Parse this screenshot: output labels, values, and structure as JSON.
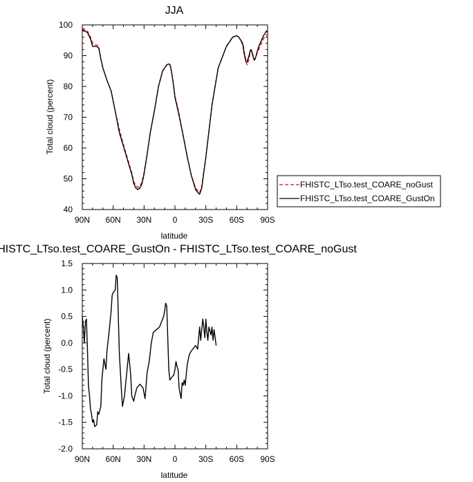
{
  "chart_data": [
    {
      "type": "line",
      "title": "JJA",
      "xlabel": "latitude",
      "ylabel": "Total cloud (percent)",
      "xlim": [
        -90,
        90
      ],
      "ylim": [
        40,
        100
      ],
      "x_ticks": [
        -90,
        -60,
        -30,
        0,
        30,
        60,
        90
      ],
      "x_tick_labels": [
        "90N",
        "60N",
        "30N",
        "0",
        "30S",
        "60S",
        "90S"
      ],
      "y_ticks": [
        40,
        50,
        60,
        70,
        80,
        90,
        100
      ],
      "y_tick_labels": [
        "40",
        "50",
        "60",
        "70",
        "80",
        "90",
        "100"
      ],
      "grid": false,
      "legend_position": "right",
      "x": [
        -90,
        -85,
        -82,
        -80,
        -78,
        -76,
        -74,
        -72,
        -70,
        -66,
        -62,
        -58,
        -54,
        -50,
        -46,
        -42,
        -40,
        -38,
        -36,
        -34,
        -32,
        -30,
        -27,
        -24,
        -20,
        -16,
        -12,
        -8,
        -6,
        -5,
        -4,
        -2,
        0,
        4,
        8,
        12,
        16,
        20,
        23,
        24,
        26,
        30,
        36,
        42,
        50,
        56,
        60,
        62,
        64,
        66,
        67,
        68,
        69,
        70,
        72,
        73,
        74,
        76,
        77,
        78,
        80,
        82,
        84,
        86,
        88,
        90
      ],
      "series": [
        {
          "name": "FHISTC_LTso.test_COARE_noGust",
          "color": "#ff0000",
          "dash": "dashed",
          "values": [
            99,
            98,
            96,
            94,
            93.5,
            93.5,
            93,
            89,
            86,
            82,
            78.5,
            72,
            66,
            61,
            56.5,
            52,
            49,
            47.8,
            47.2,
            47.5,
            49,
            52,
            58,
            65,
            72,
            80,
            85,
            87,
            87.3,
            87.2,
            86,
            82,
            77,
            71,
            64,
            57,
            51,
            47,
            45.8,
            45.5,
            47.5,
            57,
            74,
            86,
            93,
            96,
            96.5,
            96,
            95,
            94,
            92,
            90,
            88.5,
            87,
            89,
            91,
            92,
            90,
            89,
            89,
            91,
            92.5,
            94,
            95.5,
            96.5,
            97
          ]
        },
        {
          "name": "FHISTC_LTso.test_COARE_GustOn",
          "color": "#000000",
          "dash": "solid",
          "values": [
            98.5,
            97.5,
            95.5,
            93,
            93,
            93,
            92.5,
            89,
            86,
            82,
            78.5,
            72,
            65,
            60.5,
            56,
            51.5,
            48.5,
            47,
            46.5,
            47,
            48.5,
            51.5,
            58,
            65,
            72,
            80,
            85,
            87,
            87.3,
            87.2,
            86,
            82,
            76.5,
            70.5,
            64,
            57,
            51,
            46.5,
            45.2,
            45,
            47,
            57,
            74,
            86,
            93,
            96,
            96.5,
            96,
            95,
            93.5,
            91,
            89.5,
            88,
            88,
            90,
            91.5,
            92,
            89.5,
            88.5,
            89,
            91.5,
            93.5,
            95,
            96.5,
            97.5,
            98
          ]
        }
      ]
    },
    {
      "type": "line",
      "title": "HISTC_LTso.test_COARE_GustOn - FHISTC_LTso.test_COARE_noGust",
      "xlabel": "latitude",
      "ylabel": "Total cloud (percent)",
      "xlim": [
        -90,
        90
      ],
      "ylim": [
        -2.0,
        1.5
      ],
      "x_ticks": [
        -90,
        -60,
        -30,
        0,
        30,
        60,
        90
      ],
      "x_tick_labels": [
        "90N",
        "60N",
        "30N",
        "0",
        "30S",
        "60S",
        "90S"
      ],
      "y_ticks": [
        -2.0,
        -1.5,
        -1.0,
        -0.5,
        0.0,
        0.5,
        1.0,
        1.5
      ],
      "y_tick_labels": [
        "-2.0",
        "-1.5",
        "-1.0",
        "-0.5",
        "0.0",
        "0.5",
        "1.0",
        "1.5"
      ],
      "grid": false,
      "series": [
        {
          "color": "#000000",
          "values": [
            [
              -90,
              0.5
            ],
            [
              -89,
              0.3
            ],
            [
              -88,
              0.0
            ],
            [
              -87,
              0.4
            ],
            [
              -86,
              0.45
            ],
            [
              -85,
              -0.1
            ],
            [
              -84,
              -0.8
            ],
            [
              -83,
              -1.0
            ],
            [
              -82,
              -1.25
            ],
            [
              -81,
              -1.35
            ],
            [
              -80,
              -1.5
            ],
            [
              -79,
              -1.45
            ],
            [
              -78,
              -1.58
            ],
            [
              -76,
              -1.55
            ],
            [
              -75,
              -1.3
            ],
            [
              -74,
              -1.35
            ],
            [
              -72,
              -1.2
            ],
            [
              -71,
              -0.7
            ],
            [
              -69,
              -0.3
            ],
            [
              -67,
              -0.5
            ],
            [
              -66,
              -0.15
            ],
            [
              -64,
              0.2
            ],
            [
              -62,
              0.6
            ],
            [
              -61,
              0.9
            ],
            [
              -60,
              0.95
            ],
            [
              -58,
              1.0
            ],
            [
              -57,
              1.28
            ],
            [
              -56,
              1.22
            ],
            [
              -55,
              0.5
            ],
            [
              -54,
              -0.2
            ],
            [
              -52,
              -0.9
            ],
            [
              -51,
              -1.2
            ],
            [
              -49,
              -1.0
            ],
            [
              -47,
              -0.6
            ],
            [
              -45,
              -0.2
            ],
            [
              -43,
              -0.6
            ],
            [
              -42,
              -1.0
            ],
            [
              -40,
              -1.1
            ],
            [
              -39,
              -1.0
            ],
            [
              -37,
              -0.85
            ],
            [
              -34,
              -0.78
            ],
            [
              -31,
              -0.85
            ],
            [
              -29,
              -1.05
            ],
            [
              -27,
              -0.55
            ],
            [
              -25,
              -0.35
            ],
            [
              -23,
              0.0
            ],
            [
              -21,
              0.2
            ],
            [
              -18,
              0.25
            ],
            [
              -15,
              0.3
            ],
            [
              -13,
              0.4
            ],
            [
              -11,
              0.5
            ],
            [
              -10,
              0.6
            ],
            [
              -9,
              0.75
            ],
            [
              -8,
              0.7
            ],
            [
              -7,
              0.1
            ],
            [
              -6,
              -0.5
            ],
            [
              -5,
              -0.7
            ],
            [
              -3,
              -0.65
            ],
            [
              -1,
              -0.6
            ],
            [
              0,
              -0.5
            ],
            [
              1,
              -0.35
            ],
            [
              2,
              -0.45
            ],
            [
              3,
              -0.5
            ],
            [
              4,
              -0.85
            ],
            [
              6,
              -1.05
            ],
            [
              7,
              -0.75
            ],
            [
              8,
              -0.8
            ],
            [
              9,
              -0.7
            ],
            [
              10,
              -0.8
            ],
            [
              11,
              -0.58
            ],
            [
              12,
              -0.4
            ],
            [
              14,
              -0.22
            ],
            [
              16,
              -0.15
            ],
            [
              18,
              -0.1
            ],
            [
              20,
              -0.05
            ],
            [
              22,
              -0.12
            ],
            [
              24,
              0.3
            ],
            [
              25,
              0.05
            ],
            [
              26,
              0.25
            ],
            [
              27,
              0.45
            ],
            [
              28,
              0.3
            ],
            [
              29,
              0.1
            ],
            [
              30,
              0.45
            ],
            [
              31,
              0.2
            ],
            [
              32,
              0.05
            ],
            [
              33,
              0.3
            ],
            [
              35,
              0.15
            ],
            [
              36,
              0.3
            ],
            [
              37,
              0.05
            ],
            [
              38,
              0.25
            ],
            [
              40,
              -0.05
            ]
          ]
        }
      ]
    }
  ]
}
